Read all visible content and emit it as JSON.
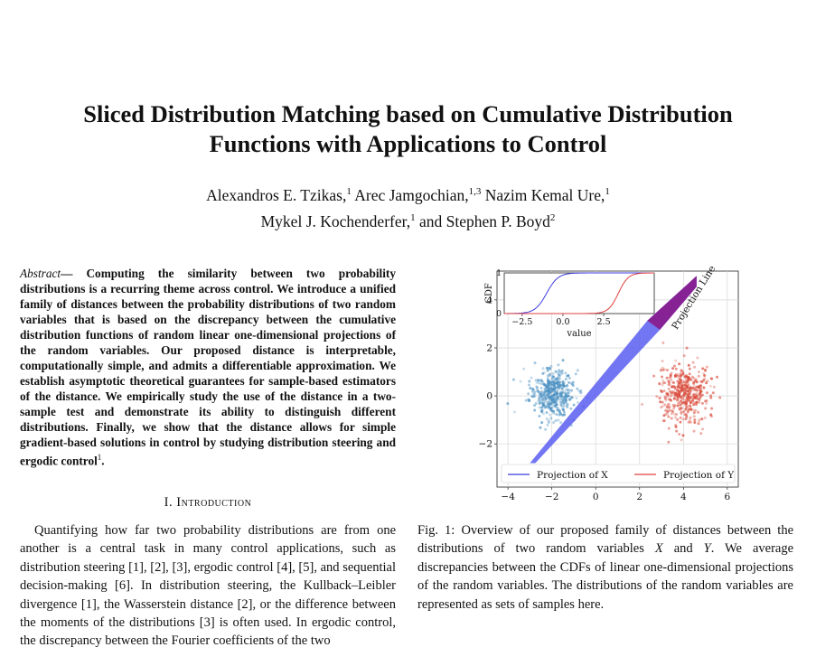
{
  "paper": {
    "title_line1": "Sliced Distribution Matching based on Cumulative Distribution",
    "title_line2": "Functions with Applications to Control",
    "authors_line1": {
      "a1": "Alexandros E. Tzikas,",
      "a1_sup": "1",
      "a2": "Arec Jamgochian,",
      "a2_sup": "1,3",
      "a3": "Nazim Kemal Ure,",
      "a3_sup": "1"
    },
    "authors_line2": {
      "a4": "Mykel J. Kochenderfer,",
      "a4_sup": "1",
      "a5": "and Stephen P. Boyd",
      "a5_sup": "2"
    },
    "abstract_label": "Abstract",
    "abstract_dash": "—",
    "abstract_text": "Computing the similarity between two probability distributions is a recurring theme across control. We introduce a unified family of distances between the probability distributions of two random variables that is based on the discrepancy between the cumulative distribution functions of random linear one-dimensional projections of the random variables. Our proposed distance is interpretable, computationally simple, and admits a differentiable approximation. We establish asymptotic theoretical guarantees for sample-based estimators of the distance. We empirically study the use of the distance in a two-sample test and demonstrate its ability to distinguish different distributions. Finally, we show that the distance allows for simple gradient-based solutions in control by studying distribution steering and ergodic control",
    "abstract_footnote": "1",
    "abstract_end": ".",
    "section_number": "I.",
    "section_title": "Introduction",
    "intro_text": "Quantifying how far two probability distributions are from one another is a central task in many control applications, such as distribution steering [1], [2], [3], ergodic control [4], [5], and sequential decision-making [6]. In distribution steering, the Kullback–Leibler divergence [1], the Wasserstein distance [2], or the difference between the moments of the distributions [3] is often used. In ergodic control, the discrepancy between the Fourier coefficients of the two",
    "caption": {
      "label": "Fig. 1:",
      "t1": "Overview of our proposed family of distances between the distributions of two random variables",
      "var_x": "X",
      "and": "and",
      "var_y": "Y",
      "t2": ". We average discrepancies between the CDFs of linear one-dimensional projections of the random variables. The distributions of the random variables are represented as sets of samples here."
    }
  },
  "chart_data": [
    {
      "type": "scatter",
      "title": "",
      "xlabel": "",
      "ylabel": "",
      "xlim": [
        -4.5,
        6.5
      ],
      "ylim": [
        -3.8,
        5.2
      ],
      "xticks": [
        "−4",
        "−2",
        "0",
        "2",
        "4",
        "6"
      ],
      "yticks": [
        "−2",
        "0",
        "2",
        "4"
      ],
      "grid": true,
      "series": [
        {
          "name": "X samples",
          "color": "#4a90c2",
          "center": [
            -2,
            0.1
          ],
          "spread": 0.5
        },
        {
          "name": "Y samples",
          "color": "#d94a3a",
          "center": [
            4,
            0.1
          ],
          "spread": 0.6
        }
      ],
      "projection_line": {
        "label": "Projection Line",
        "from": [
          -3,
          -2.8
        ],
        "to": [
          4.6,
          5
        ]
      },
      "projection_colors": {
        "x": "#5a5ef0",
        "y": "#8a1a8a"
      },
      "legend": {
        "position": "bottom",
        "items": [
          {
            "label": "Projection of X",
            "color": "#3b3bdc"
          },
          {
            "label": "Projection of Y",
            "color": "#e04040"
          }
        ]
      }
    },
    {
      "type": "line",
      "title": "",
      "xlabel": "value",
      "ylabel": "CDF",
      "xlim": [
        -3.6,
        5.6
      ],
      "ylim": [
        0,
        1
      ],
      "xticks": [
        "−2.5",
        "0.0",
        "2.5"
      ],
      "yticks": [
        "0",
        "1"
      ],
      "legend": "inset top-left",
      "series": [
        {
          "name": "Projection of X",
          "color": "#3b3bdc",
          "mean": -1.0,
          "scale": 0.35
        },
        {
          "name": "Projection of Y",
          "color": "#e04040",
          "mean": 3.4,
          "scale": 0.3
        }
      ]
    }
  ]
}
